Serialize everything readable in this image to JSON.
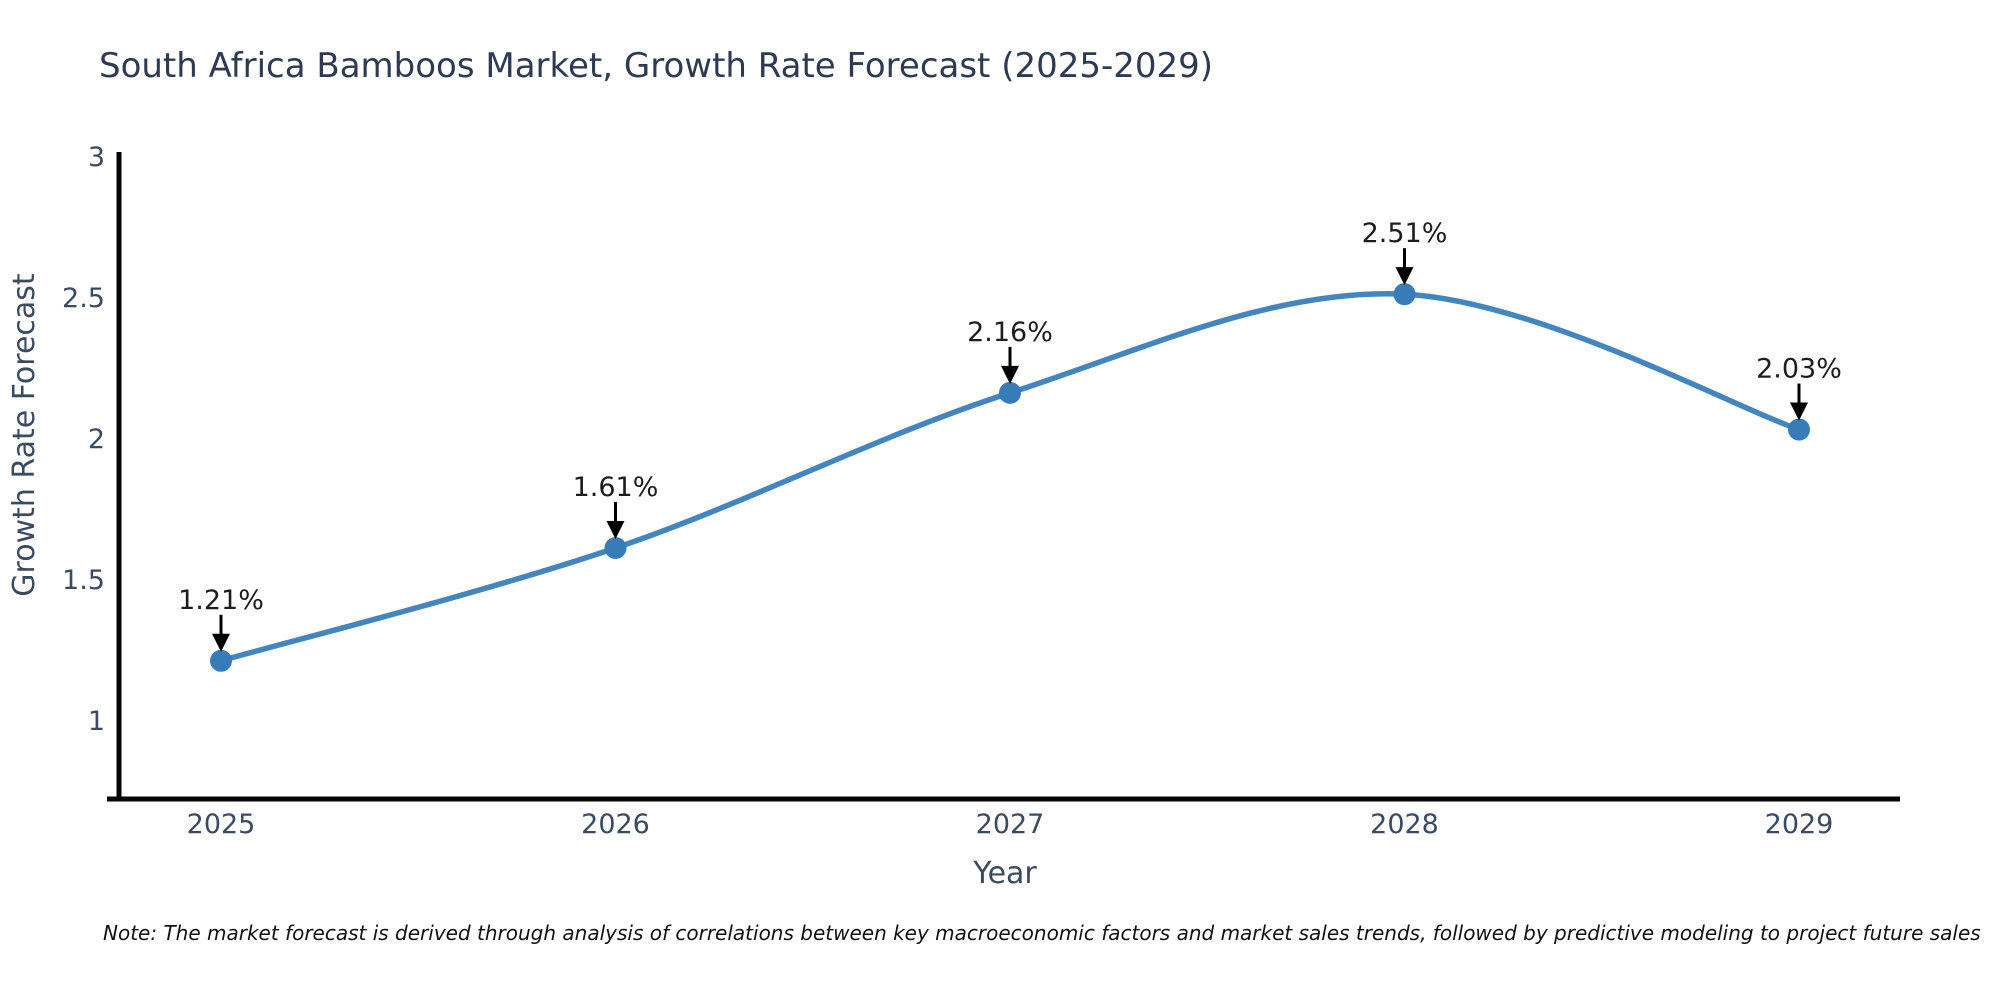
{
  "title": "South Africa Bamboos Market, Growth Rate Forecast (2025-2029)",
  "note": "Note: The market forecast is derived through analysis of correlations between key macroeconomic factors and market sales trends, followed by predictive modeling to project future sales",
  "chart_data": {
    "type": "line",
    "title": "South Africa Bamboos Market, Growth Rate Forecast (2025-2029)",
    "x": [
      2025,
      2026,
      2027,
      2028,
      2029
    ],
    "series": [
      {
        "name": "Growth Rate Forecast",
        "values": [
          1.21,
          1.61,
          2.16,
          2.51,
          2.03
        ],
        "point_labels": [
          "1.21%",
          "1.61%",
          "2.16%",
          "2.51%",
          "2.03%"
        ]
      }
    ],
    "xlabel": "Year",
    "ylabel": "Growth Rate Forecast",
    "xtick_labels": [
      "2025",
      "2026",
      "2027",
      "2028",
      "2029"
    ],
    "ytick_values": [
      1,
      1.5,
      2,
      2.5,
      3
    ],
    "ytick_labels": [
      "1",
      "1.5",
      "2",
      "2.5",
      "3"
    ],
    "ylim": [
      0.72,
      3.04
    ],
    "xlim": [
      2024.74,
      2029.27
    ],
    "grid": false,
    "legend": false,
    "smoothing": true,
    "annotations_style": "black-arrow-above-point",
    "colors": {
      "line": "#4385bf",
      "marker": "#377bb9",
      "annotation_text": "#1c1c1c",
      "arrow": "#000000",
      "spine": "#050505",
      "title_text": "#2e3a54",
      "axis_text": "#3b4a63",
      "background": "#ffffff"
    }
  }
}
